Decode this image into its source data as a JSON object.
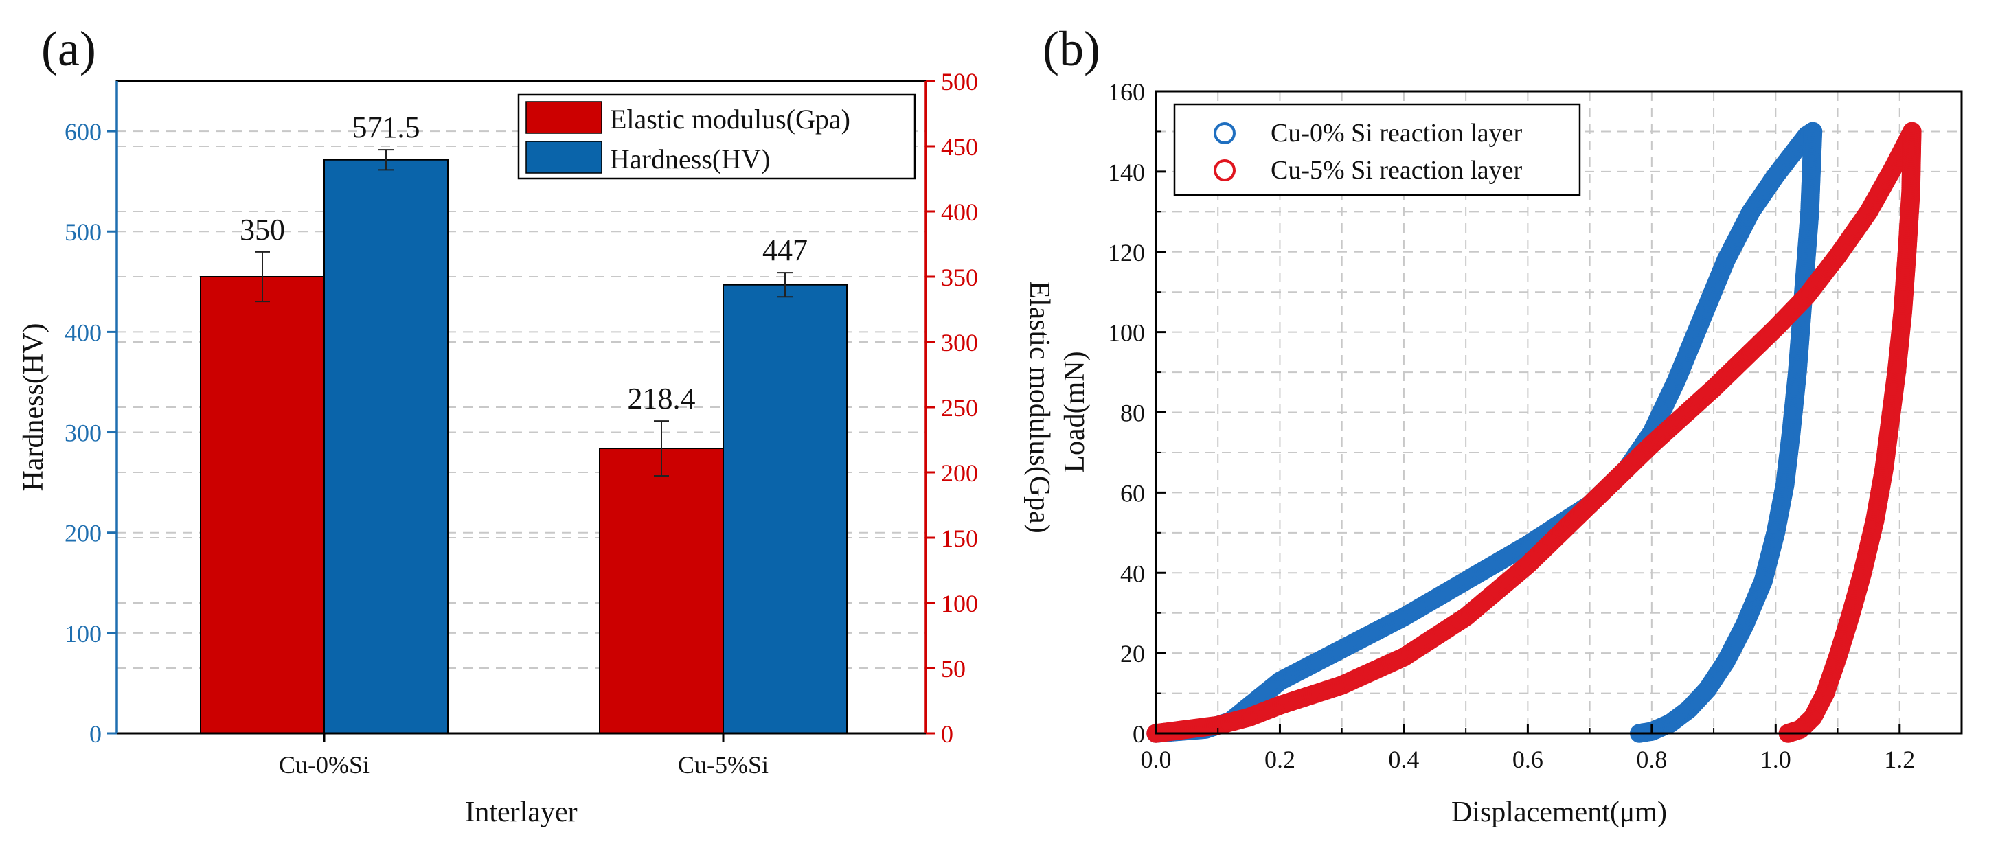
{
  "panel_labels": {
    "a": "(a)",
    "b": "(b)"
  },
  "colors": {
    "modulus": "#cc0000",
    "hardness": "#0a64aa",
    "left_axis": "#1f6fb0",
    "right_axis": "#d00000",
    "cu0_curve": "#1f6fc0",
    "cu5_curve": "#e0151f",
    "grid": "#c8c8c8"
  },
  "chart_data": [
    {
      "type": "bar",
      "categories": [
        "Cu-0%Si",
        "Cu-5%Si"
      ],
      "series": [
        {
          "name": "Elastic modulus(Gpa)",
          "axis": "right",
          "values": [
            350,
            218.4
          ],
          "errors": [
            19,
            21
          ],
          "labels": [
            "350",
            "218.4"
          ]
        },
        {
          "name": "Hardness(HV)",
          "axis": "left",
          "values": [
            571.5,
            447
          ],
          "errors": [
            10,
            12
          ],
          "labels": [
            "571.5",
            "447"
          ]
        }
      ],
      "xlabel": "Interlayer",
      "ylabel": "Hardness(HV)",
      "y2label": "Elastic modulus(Gpa)",
      "ylim": [
        0,
        650
      ],
      "y2lim": [
        0,
        500
      ],
      "yticks": [
        0,
        100,
        200,
        300,
        400,
        500,
        600
      ],
      "y2ticks": [
        0,
        50,
        100,
        150,
        200,
        250,
        300,
        350,
        400,
        450,
        500
      ],
      "grid": true,
      "legend_position": "top-right"
    },
    {
      "type": "scatter",
      "marker": "open-circle",
      "xlabel": "Displacement(μm)",
      "ylabel": "Load(mN)",
      "xlim": [
        0,
        1.3
      ],
      "ylim": [
        0,
        160
      ],
      "xticks": [
        0.0,
        0.2,
        0.4,
        0.6,
        0.8,
        1.0,
        1.2
      ],
      "yticks": [
        0,
        20,
        40,
        60,
        80,
        100,
        120,
        140,
        160
      ],
      "grid": true,
      "legend_position": "top-left",
      "series": [
        {
          "name": "Cu-0% Si reaction layer",
          "loading": {
            "x": [
              0.0,
              0.08,
              0.12,
              0.16,
              0.2,
              0.25,
              0.3,
              0.4,
              0.5,
              0.6,
              0.7,
              0.76,
              0.8,
              0.84,
              0.88,
              0.92,
              0.96,
              1.0,
              1.03,
              1.05,
              1.06
            ],
            "y": [
              0,
              1,
              3,
              8,
              13,
              17,
              21,
              29,
              38,
              47,
              57,
              66,
              75,
              88,
              103,
              118,
              130,
              139,
              145,
              149,
              150
            ]
          },
          "unloading": {
            "x": [
              1.06,
              1.055,
              1.045,
              1.035,
              1.025,
              1.015,
              1.0,
              0.98,
              0.95,
              0.92,
              0.89,
              0.86,
              0.83,
              0.8,
              0.78
            ],
            "y": [
              150,
              130,
              110,
              90,
              75,
              62,
              50,
              38,
              27,
              18,
              11,
              6,
              2.5,
              0.5,
              0
            ]
          }
        },
        {
          "name": "Cu-5% Si reaction layer",
          "loading": {
            "x": [
              0.0,
              0.1,
              0.15,
              0.2,
              0.3,
              0.4,
              0.5,
              0.6,
              0.7,
              0.8,
              0.9,
              1.0,
              1.05,
              1.1,
              1.15,
              1.19,
              1.21,
              1.22
            ],
            "y": [
              0,
              2,
              4,
              7,
              12,
              19,
              29,
              42,
              57,
              72,
              86,
              101,
              109,
              119,
              130,
              141,
              147,
              150
            ]
          },
          "unloading": {
            "x": [
              1.22,
              1.218,
              1.212,
              1.205,
              1.195,
              1.185,
              1.175,
              1.16,
              1.14,
              1.12,
              1.1,
              1.08,
              1.06,
              1.04,
              1.02
            ],
            "y": [
              150,
              135,
              120,
              105,
              90,
              78,
              66,
              53,
              40,
              29,
              19,
              10,
              4,
              1,
              0
            ]
          }
        }
      ]
    }
  ]
}
